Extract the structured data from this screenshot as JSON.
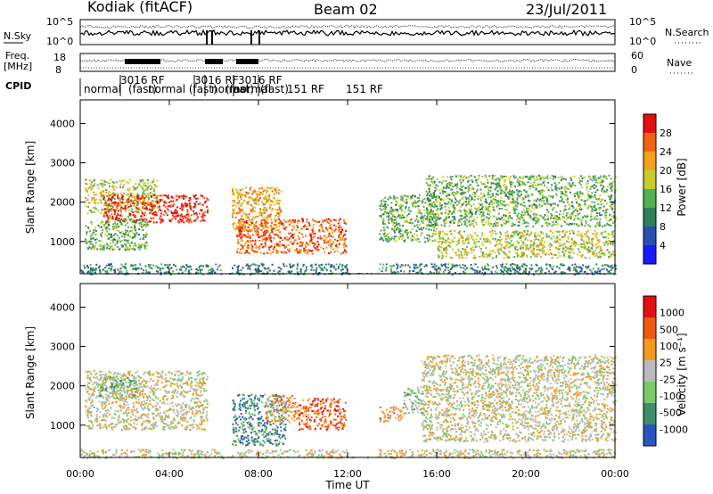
{
  "header": {
    "title": "Kodiak (fitACF)",
    "beam": "Beam 02",
    "date": "23/Jul/2011"
  },
  "strips": {
    "nsky_label": "N.Sky",
    "nsearch_label": "N.Search",
    "nsky_ticks": [
      "10^5",
      "10^0"
    ],
    "nsearch_ticks": [
      "10^5",
      "10^0"
    ],
    "freq_label_1": "Freq.",
    "freq_label_2": "[MHz]",
    "freq_ticks": [
      "18",
      "8"
    ],
    "nave_label": "Nave",
    "nave_ticks": [
      "60",
      "0"
    ],
    "cpid_label": "CPID",
    "cpid_entries": [
      "normal",
      "3016 RF",
      "(fast)",
      "normal (fast)",
      "3016 RF",
      "normal",
      "(fast)",
      "normal",
      "3016 RF",
      "(fast)",
      "151 RF",
      "151 RF"
    ]
  },
  "colors": {
    "power_scale": [
      "#1a1aff",
      "#2b4fb0",
      "#2f7f5a",
      "#52b052",
      "#c8cc2b",
      "#f3a21b",
      "#f2630c",
      "#e41010"
    ],
    "velocity_scale": [
      "#2a55c0",
      "#3f8c6a",
      "#7cc96a",
      "#bbbbbb",
      "#f59a1c",
      "#ee5a12",
      "#e21010"
    ]
  },
  "chart_data": [
    {
      "type": "heatmap",
      "name": "power",
      "xlabel": "Time UT",
      "ylabel": "Slant Range [km]",
      "xlim": [
        0,
        24
      ],
      "ylim": [
        180,
        4600
      ],
      "x_ticks": [
        "00:00",
        "04:00",
        "08:00",
        "12:00",
        "16:00",
        "20:00",
        "00:00"
      ],
      "y_ticks": [
        "1000",
        "2000",
        "3000",
        "4000"
      ],
      "colorbar_label": "Power [dB]",
      "colorbar_ticks": [
        "28",
        "24",
        "20",
        "16",
        "12",
        "8",
        "4"
      ],
      "echo_regions": [
        {
          "t0": 0.2,
          "t1": 3.5,
          "r0": 1700,
          "r1": 2600,
          "level": 4
        },
        {
          "t0": 1.0,
          "t1": 5.7,
          "r0": 1500,
          "r1": 2200,
          "level": 7
        },
        {
          "t0": 0.2,
          "t1": 3.0,
          "r0": 800,
          "r1": 1600,
          "level": 3
        },
        {
          "t0": 6.7,
          "t1": 9.0,
          "r0": 1300,
          "r1": 2400,
          "level": 5
        },
        {
          "t0": 7.0,
          "t1": 11.9,
          "r0": 700,
          "r1": 1600,
          "level": 6
        },
        {
          "t0": 13.4,
          "t1": 16.0,
          "r0": 1000,
          "r1": 2200,
          "level": 3
        },
        {
          "t0": 15.5,
          "t1": 24.0,
          "r0": 1400,
          "r1": 2700,
          "level": 3
        },
        {
          "t0": 16.0,
          "t1": 24.0,
          "r0": 600,
          "r1": 1300,
          "level": 4
        },
        {
          "t0": 0.0,
          "t1": 24.0,
          "r0": 180,
          "r1": 450,
          "level": 2
        }
      ]
    },
    {
      "type": "heatmap",
      "name": "velocity",
      "xlabel": "Time UT",
      "ylabel": "Slant Range [km]",
      "xlim": [
        0,
        24
      ],
      "ylim": [
        180,
        4600
      ],
      "x_ticks": [
        "00:00",
        "04:00",
        "08:00",
        "12:00",
        "16:00",
        "20:00",
        "00:00"
      ],
      "y_ticks": [
        "1000",
        "2000",
        "3000",
        "4000"
      ],
      "colorbar_label": "Velocity [m s⁻¹]",
      "colorbar_ticks": [
        "1000",
        "500",
        "100",
        "25",
        "-25",
        "-100",
        "-500",
        "-1000"
      ],
      "echo_regions": [
        {
          "t0": 0.2,
          "t1": 5.7,
          "r0": 900,
          "r1": 2400,
          "level": 3
        },
        {
          "t0": 0.8,
          "t1": 2.5,
          "r0": 1700,
          "r1": 2300,
          "level": 4
        },
        {
          "t0": 6.8,
          "t1": 9.2,
          "r0": 500,
          "r1": 1800,
          "level": 5
        },
        {
          "t0": 8.3,
          "t1": 9.8,
          "r0": 1100,
          "r1": 1800,
          "level": 2
        },
        {
          "t0": 9.8,
          "t1": 11.9,
          "r0": 900,
          "r1": 1700,
          "level": 1
        },
        {
          "t0": 13.4,
          "t1": 14.5,
          "r0": 1100,
          "r1": 1500,
          "level": 2
        },
        {
          "t0": 14.5,
          "t1": 15.4,
          "r0": 1300,
          "r1": 2000,
          "level": 4
        },
        {
          "t0": 15.3,
          "t1": 24.0,
          "r0": 600,
          "r1": 2800,
          "level": 3
        },
        {
          "t0": 0.0,
          "t1": 24.0,
          "r0": 180,
          "r1": 400,
          "level": 3
        }
      ]
    }
  ]
}
